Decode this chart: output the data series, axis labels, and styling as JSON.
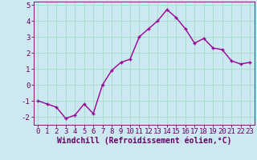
{
  "x": [
    0,
    1,
    2,
    3,
    4,
    5,
    6,
    7,
    8,
    9,
    10,
    11,
    12,
    13,
    14,
    15,
    16,
    17,
    18,
    19,
    20,
    21,
    22,
    23
  ],
  "y": [
    -1.0,
    -1.2,
    -1.4,
    -2.1,
    -1.9,
    -1.2,
    -1.8,
    0.0,
    0.9,
    1.4,
    1.6,
    3.0,
    3.5,
    4.0,
    4.7,
    4.2,
    3.5,
    2.6,
    2.9,
    2.3,
    2.2,
    1.5,
    1.3,
    1.4
  ],
  "line_color": "#990099",
  "marker": "+",
  "bg_color": "#cce8f0",
  "grid_color": "#aaddcc",
  "xlabel": "Windchill (Refroidissement éolien,°C)",
  "xlabel_color": "#660066",
  "tick_color": "#660066",
  "ylim": [
    -2.5,
    5.2
  ],
  "xlim": [
    -0.5,
    23.5
  ],
  "yticks": [
    -2,
    -1,
    0,
    1,
    2,
    3,
    4,
    5
  ],
  "xticks": [
    0,
    1,
    2,
    3,
    4,
    5,
    6,
    7,
    8,
    9,
    10,
    11,
    12,
    13,
    14,
    15,
    16,
    17,
    18,
    19,
    20,
    21,
    22,
    23
  ],
  "xtick_labels": [
    "0",
    "1",
    "2",
    "3",
    "4",
    "5",
    "6",
    "7",
    "8",
    "9",
    "10",
    "11",
    "12",
    "13",
    "14",
    "15",
    "16",
    "17",
    "18",
    "19",
    "20",
    "21",
    "22",
    "23"
  ],
  "font_size_xlabel": 7.0,
  "font_size_ticks": 6.5,
  "line_width": 1.0,
  "marker_size": 3.5,
  "marker_edge_width": 1.0
}
